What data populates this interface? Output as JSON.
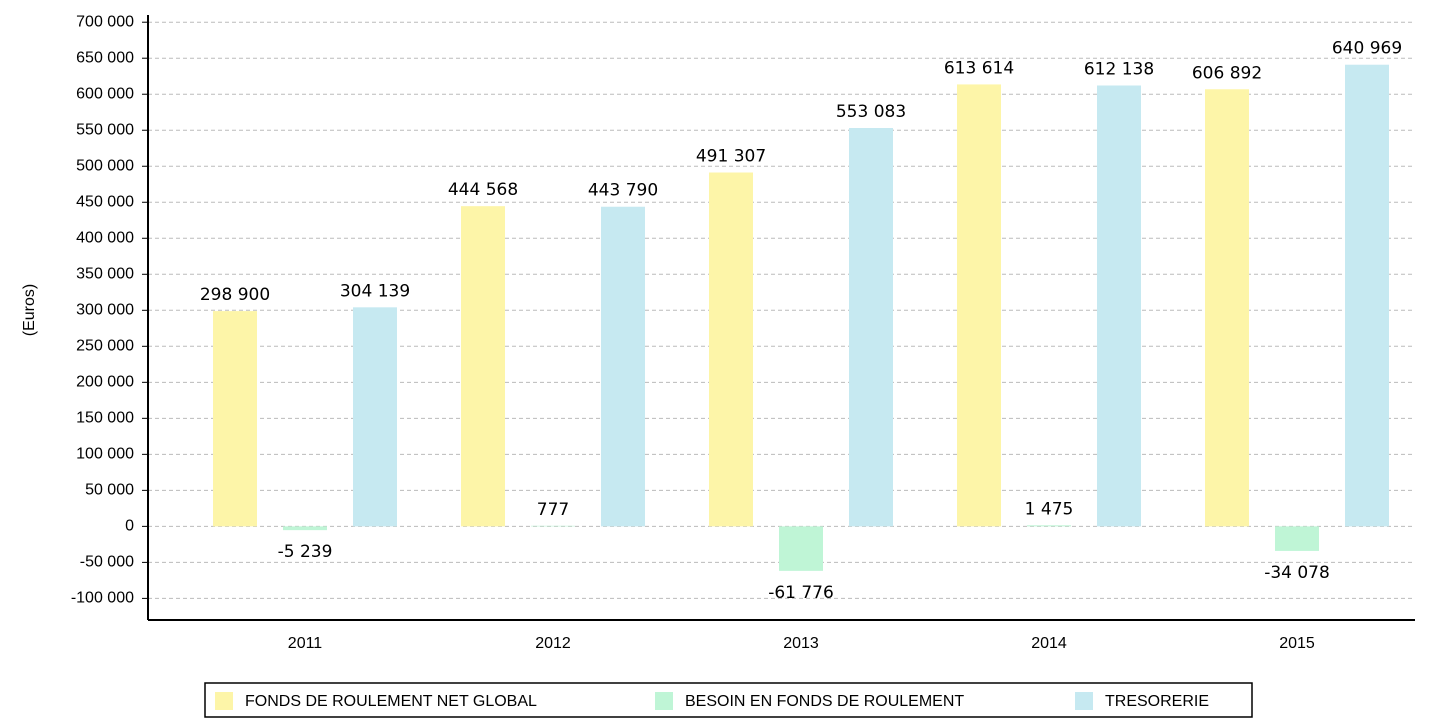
{
  "chart_data": {
    "type": "bar",
    "y_label": "(Euros)",
    "categories": [
      "2011",
      "2012",
      "2013",
      "2014",
      "2015"
    ],
    "series": [
      {
        "name": "FONDS DE ROULEMENT NET GLOBAL",
        "color": "#fdf5a8",
        "values": [
          298900,
          444568,
          491307,
          613614,
          606892
        ],
        "value_labels": [
          "298 900",
          "444 568",
          "491 307",
          "613 614",
          "606 892"
        ]
      },
      {
        "name": "BESOIN EN FONDS DE ROULEMENT",
        "color": "#bff5d6",
        "values": [
          -5239,
          777,
          -61776,
          1475,
          -34078
        ],
        "value_labels": [
          "-5 239",
          "777",
          "-61 776",
          "1 475",
          "-34 078"
        ]
      },
      {
        "name": "TRESORERIE",
        "color": "#c6e9f1",
        "values": [
          304139,
          443790,
          553083,
          612138,
          640969
        ],
        "value_labels": [
          "304 139",
          "443 790",
          "553 083",
          "612 138",
          "640 969"
        ]
      }
    ],
    "ylim": [
      -130000,
      710000
    ],
    "yticks": [
      {
        "value": -100000,
        "label": "-100 000"
      },
      {
        "value": -50000,
        "label": "-50 000"
      },
      0,
      {
        "value": 50000,
        "label": "50 000"
      },
      {
        "value": 100000,
        "label": "100 000"
      },
      {
        "value": 150000,
        "label": "150 000"
      },
      {
        "value": 200000,
        "label": "200 000"
      },
      {
        "value": 250000,
        "label": "250 000"
      },
      {
        "value": 300000,
        "label": "300 000"
      },
      {
        "value": 350000,
        "label": "350 000"
      },
      {
        "value": 400000,
        "label": "400 000"
      },
      {
        "value": 450000,
        "label": "450 000"
      },
      {
        "value": 500000,
        "label": "500 000"
      },
      {
        "value": 550000,
        "label": "550 000"
      },
      {
        "value": 600000,
        "label": "600 000"
      },
      {
        "value": 650000,
        "label": "650 000"
      },
      {
        "value": 700000,
        "label": "700 000"
      }
    ],
    "grid": true,
    "legend": "bottom"
  }
}
